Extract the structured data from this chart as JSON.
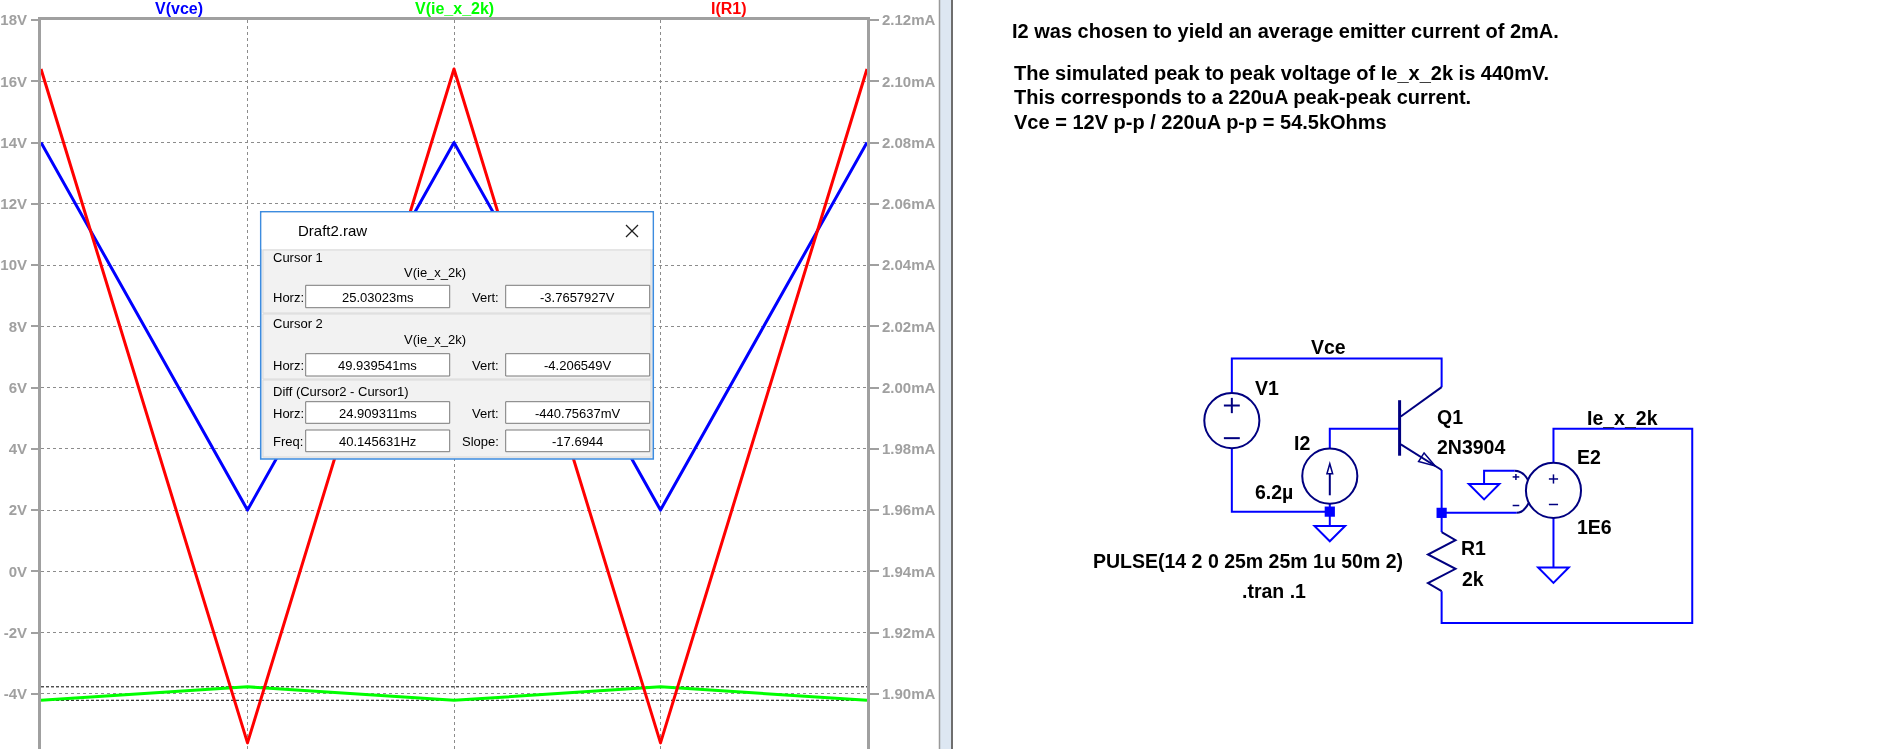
{
  "chart_data": {
    "type": "line",
    "categories": [
      null,
      null,
      null,
      null,
      null
    ],
    "series": [
      {
        "name": "V(vce)",
        "color": "#0000ff",
        "values": [
          14,
          2,
          14,
          2,
          14
        ]
      },
      {
        "name": "V(ie_x_2k)",
        "color": "#00ff00",
        "values": [
          -4.21,
          -3.77,
          -4.21,
          -3.77,
          -4.21
        ]
      },
      {
        "name": "I(R1)",
        "color": "#ff0000",
        "axis": "y2",
        "values": [
          2.104,
          1.884,
          2.104,
          1.884,
          2.104
        ]
      }
    ],
    "ylim": [
      -5.8,
      18
    ],
    "yticks": [
      {
        "value": 18,
        "label": "18V"
      },
      {
        "value": 16,
        "label": "16V"
      },
      {
        "value": 14,
        "label": "14V"
      },
      {
        "value": 12,
        "label": "12V"
      },
      {
        "value": 10,
        "label": "10V"
      },
      {
        "value": 8,
        "label": "8V"
      },
      {
        "value": 6,
        "label": "6V"
      },
      {
        "value": 4,
        "label": "4V"
      },
      {
        "value": 2,
        "label": "2V"
      },
      {
        "value": 0,
        "label": "0V"
      },
      {
        "value": -2,
        "label": "-2V"
      },
      {
        "value": -4,
        "label": "-4V"
      }
    ],
    "y2lim": [
      1.882,
      2.12
    ],
    "y2ticks": [
      {
        "value": 2.12,
        "label": "2.12mA"
      },
      {
        "value": 2.1,
        "label": "2.10mA"
      },
      {
        "value": 2.08,
        "label": "2.08mA"
      },
      {
        "value": 2.06,
        "label": "2.06mA"
      },
      {
        "value": 2.04,
        "label": "2.04mA"
      },
      {
        "value": 2.02,
        "label": "2.02mA"
      },
      {
        "value": 2.0,
        "label": "2.00mA"
      },
      {
        "value": 1.98,
        "label": "1.98mA"
      },
      {
        "value": 1.96,
        "label": "1.96mA"
      },
      {
        "value": 1.94,
        "label": "1.94mA"
      },
      {
        "value": 1.92,
        "label": "1.92mA"
      },
      {
        "value": 1.9,
        "label": "1.90mA"
      }
    ],
    "grid": true,
    "legend": "top",
    "ref_lines": [
      {
        "axis": "y",
        "value": -3.77,
        "color": "#000000",
        "line_style": "dotted"
      },
      {
        "axis": "y",
        "value": -4.21,
        "color": "#000000",
        "line_style": "dotted"
      }
    ],
    "annotations": [
      "Draft2.raw",
      "Cursor 1",
      "V(ie_x_2k)",
      "Horz:",
      "25.03023ms",
      "Vert:",
      "-3.7657927V",
      "Cursor 2",
      "V(ie_x_2k)",
      "Horz:",
      "49.939541ms",
      "Vert:",
      "-4.206549V",
      "Diff (Cursor2 - Cursor1)",
      "Horz:",
      "24.909311ms",
      "Vert:",
      "-440.75637mV",
      "Freq:",
      "40.145631Hz",
      "Slope:",
      "-17.6944",
      "I2 was chosen to yield an average emitter current of 2mA.",
      "The simulated peak to peak voltage of Ie_x_2k is 440mV.",
      "This corresponds to a 220uA peak-peak current.",
      "Vce = 12V p-p / 220uA p-p = 54.5kOhms",
      "Vce",
      "V1",
      "Q1",
      "2N3904",
      "I2",
      "6.2µ",
      "Ie_x_2k",
      "E2",
      "1E6",
      "R1",
      "2k",
      "PULSE(14 2 0 25m 25m 1u 50m 2)",
      ".tran .1"
    ]
  }
}
